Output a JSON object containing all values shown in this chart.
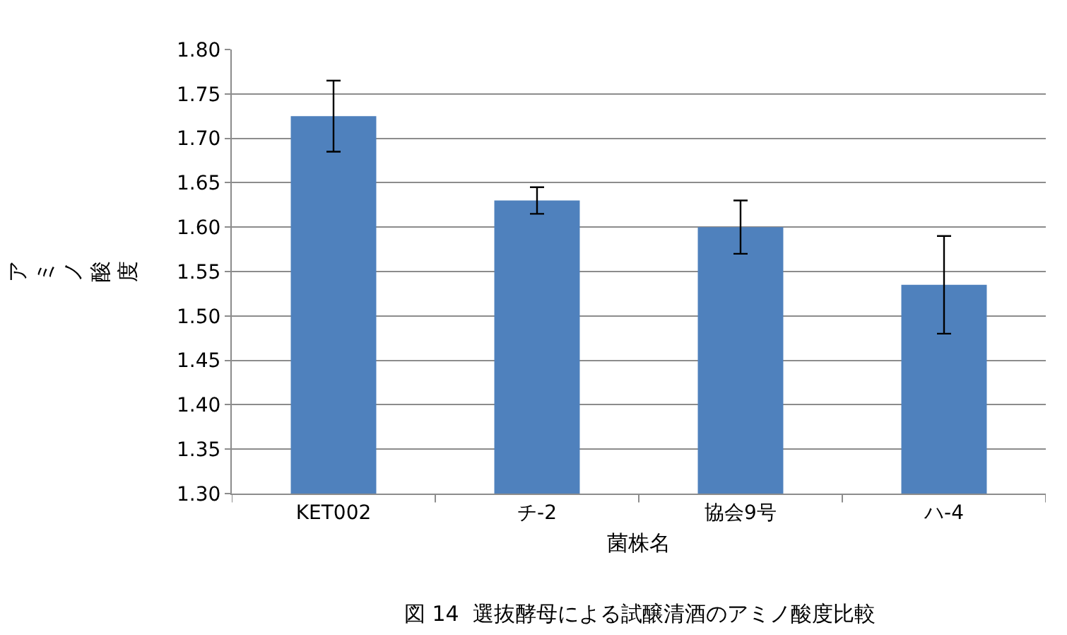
{
  "chart_data": {
    "type": "bar",
    "categories": [
      "KET002",
      "チ-2",
      "協会9号",
      "ハ-4"
    ],
    "values": [
      1.725,
      1.63,
      1.6,
      1.535
    ],
    "errors": [
      0.04,
      0.015,
      0.03,
      0.055
    ],
    "color": "#4f81bd",
    "xlabel": "菌株名",
    "ylabel": "アミノ酸度",
    "annotations": [
      "図 14  選抜酵母による試醸清酒のアミノ酸度比較"
    ],
    "ylim": [
      1.3,
      1.8
    ],
    "yticks": [
      {
        "value": 1.3,
        "label": "1.30"
      },
      {
        "value": 1.35,
        "label": "1.35"
      },
      {
        "value": 1.4,
        "label": "1.40"
      },
      {
        "value": 1.45,
        "label": "1.45"
      },
      {
        "value": 1.5,
        "label": "1.50"
      },
      {
        "value": 1.55,
        "label": "1.55"
      },
      {
        "value": 1.6,
        "label": "1.60"
      },
      {
        "value": 1.65,
        "label": "1.65"
      },
      {
        "value": 1.7,
        "label": "1.70"
      },
      {
        "value": 1.75,
        "label": "1.75"
      },
      {
        "value": 1.8,
        "label": "1.80"
      }
    ],
    "grid": "y",
    "legend": false
  }
}
